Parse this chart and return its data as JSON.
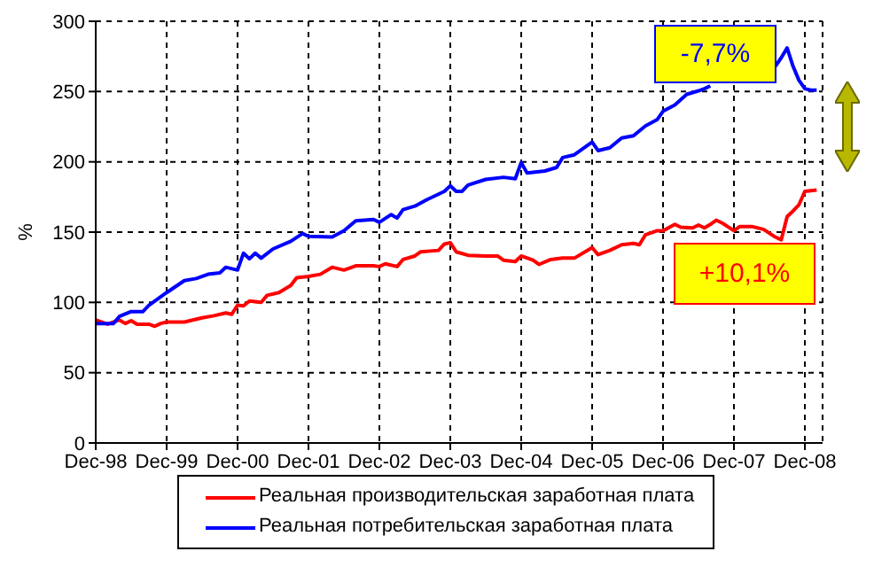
{
  "chart_data": {
    "type": "line",
    "ylabel": "%",
    "xlim": [
      "1998-12",
      "2009-03"
    ],
    "xticks": [
      {
        "value": "1998-12",
        "label": "Dec-98"
      },
      {
        "value": "1999-12",
        "label": "Dec-99"
      },
      {
        "value": "2000-12",
        "label": "Dec-00"
      },
      {
        "value": "2001-12",
        "label": "Dec-01"
      },
      {
        "value": "2002-12",
        "label": "Dec-02"
      },
      {
        "value": "2003-12",
        "label": "Dec-03"
      },
      {
        "value": "2004-12",
        "label": "Dec-04"
      },
      {
        "value": "2005-12",
        "label": "Dec-05"
      },
      {
        "value": "2006-12",
        "label": "Dec-06"
      },
      {
        "value": "2007-12",
        "label": "Dec-07"
      },
      {
        "value": "2008-12",
        "label": "Dec-08"
      }
    ],
    "ylim": [
      0,
      300
    ],
    "yticks": [
      0,
      50,
      100,
      150,
      200,
      250,
      300
    ],
    "grid": true,
    "legend": "bottom",
    "marker": "none",
    "line_style": "solid",
    "annotations": [
      "+10,1%",
      "-7,7%"
    ],
    "series": [
      {
        "name": "Реальная производительская заработная плата",
        "color": "#ff0000",
        "x": [
          "1998-12",
          "1999-02",
          "1999-04",
          "1999-05",
          "1999-06",
          "1999-07",
          "1999-09",
          "1999-10",
          "1999-11",
          "1999-12",
          "2000-03",
          "2000-06",
          "2000-08",
          "2000-10",
          "2000-11",
          "2000-12",
          "2001-01",
          "2001-02",
          "2001-04",
          "2001-05",
          "2001-07",
          "2001-09",
          "2001-10",
          "2001-12",
          "2002-02",
          "2002-04",
          "2002-06",
          "2002-08",
          "2002-11",
          "2002-12",
          "2003-01",
          "2003-03",
          "2003-04",
          "2003-06",
          "2003-07",
          "2003-10",
          "2003-11",
          "2003-12",
          "2004-01",
          "2004-03",
          "2004-06",
          "2004-08",
          "2004-09",
          "2004-11",
          "2004-12",
          "2005-02",
          "2005-03",
          "2005-05",
          "2005-07",
          "2005-09",
          "2005-12",
          "2006-01",
          "2006-03",
          "2006-05",
          "2006-07",
          "2006-08",
          "2006-09",
          "2006-11",
          "2006-12",
          "2007-02",
          "2007-03",
          "2007-05",
          "2007-06",
          "2007-07",
          "2007-08",
          "2007-09",
          "2007-10",
          "2007-12",
          "2008-01",
          "2008-03",
          "2008-05",
          "2008-07",
          "2008-08",
          "2008-09",
          "2008-10",
          "2008-11",
          "2008-12",
          "2009-02"
        ],
        "values": [
          87.5,
          84.5,
          87.5,
          85,
          87,
          84.5,
          84.5,
          83,
          85,
          86,
          86,
          89,
          90.5,
          92.5,
          91.5,
          98,
          97.5,
          101,
          100,
          105,
          107,
          112,
          117.5,
          118.5,
          120,
          125,
          123,
          126,
          126,
          125.5,
          127.5,
          125.5,
          130.5,
          133,
          136,
          137,
          141.5,
          142.5,
          136,
          133.5,
          133,
          133,
          130,
          129,
          133,
          130,
          127,
          130.5,
          131.5,
          131.5,
          139,
          134,
          137,
          141,
          142,
          141,
          148,
          151,
          151,
          155.5,
          153.5,
          153,
          155,
          153,
          155.5,
          158.5,
          156.5,
          151,
          154,
          154,
          152,
          146.5,
          144.5,
          161,
          165,
          169.5,
          179,
          180
        ]
      },
      {
        "name": "Реальная потребительская заработная плата",
        "color": "#0000ff",
        "x": [
          "1998-12",
          "1999-03",
          "1999-04",
          "1999-06",
          "1999-08",
          "1999-09",
          "1999-12",
          "2000-03",
          "2000-05",
          "2000-07",
          "2000-09",
          "2000-10",
          "2000-12",
          "2001-01",
          "2001-02",
          "2001-03",
          "2001-04",
          "2001-06",
          "2001-09",
          "2001-11",
          "2001-12",
          "2002-04",
          "2002-06",
          "2002-08",
          "2002-11",
          "2002-12",
          "2003-02",
          "2003-03",
          "2003-04",
          "2003-06",
          "2003-08",
          "2003-11",
          "2003-12",
          "2004-01",
          "2004-02",
          "2004-03",
          "2004-06",
          "2004-09",
          "2004-11",
          "2004-12",
          "2005-01",
          "2005-04",
          "2005-06",
          "2005-07",
          "2005-09",
          "2005-12",
          "2006-01",
          "2006-03",
          "2006-05",
          "2006-07",
          "2006-09",
          "2006-11",
          "2006-12",
          "2007-02",
          "2007-04",
          "2007-06",
          "2007-07",
          "2007-08",
          "2008-06",
          "2008-07",
          "2008-08",
          "2008-09",
          "2008-10",
          "2008-11",
          "2008-12",
          "2009-01",
          "2009-02"
        ],
        "values": [
          85,
          85,
          90,
          93.5,
          93.5,
          98,
          107,
          115.5,
          117,
          120,
          121,
          125,
          123,
          135,
          131,
          135,
          131.5,
          138,
          143.5,
          149,
          147,
          146.5,
          151,
          158,
          159,
          157,
          162.5,
          160,
          166,
          168.5,
          173,
          179,
          183,
          179,
          179,
          183.5,
          187.5,
          189,
          188,
          199.5,
          192,
          193.5,
          196,
          203,
          205,
          214,
          208,
          210,
          217,
          218.5,
          225.5,
          230,
          236,
          240.5,
          248,
          250.5,
          252,
          254,
          null,
          268,
          274,
          281,
          268,
          258,
          252,
          251,
          251
        ]
      }
    ]
  }
}
